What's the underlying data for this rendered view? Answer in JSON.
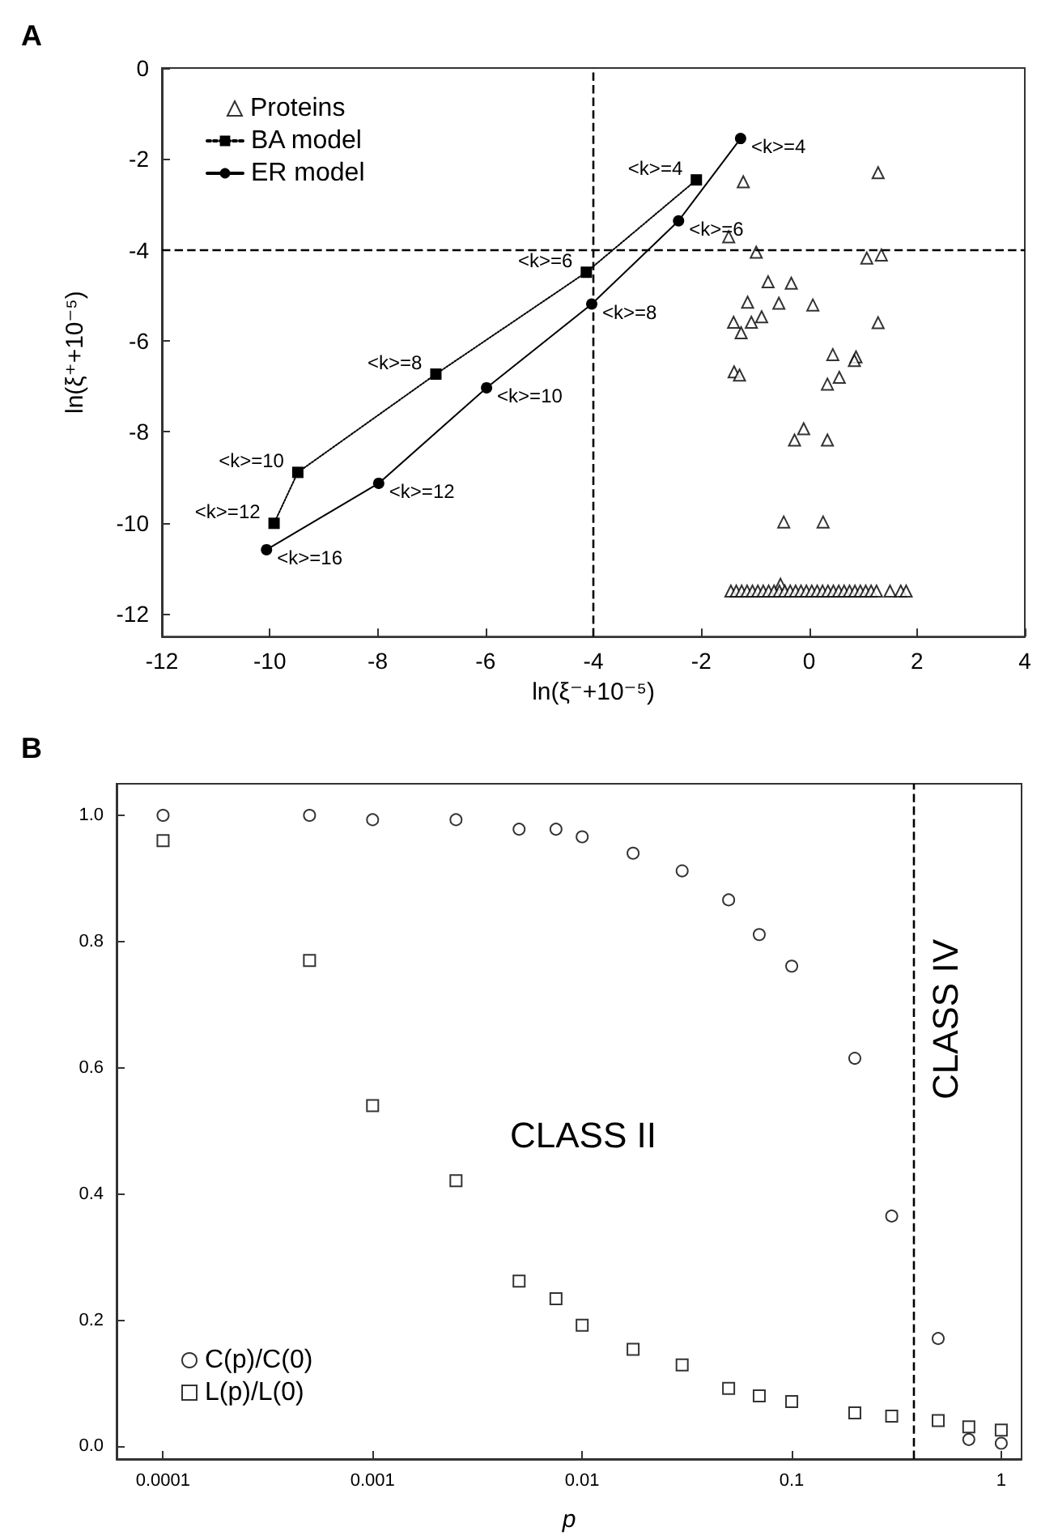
{
  "chart_data": [
    {
      "type": "scatter",
      "title": "A",
      "xlabel": "ln(ξ⁻+10⁻⁵)",
      "ylabel": "ln(ξ⁺+10⁻⁵)",
      "xlim": [
        -12,
        4
      ],
      "ylim": [
        -12.5,
        0
      ],
      "xticks": [
        -12,
        -10,
        -8,
        -6,
        -4,
        -2,
        0,
        2,
        4
      ],
      "yticks": [
        -12,
        -10,
        -8,
        -6,
        -4,
        -2,
        0
      ],
      "legend": "top left",
      "grid": false,
      "ref_lines": [
        {
          "axis": "x",
          "value": -4,
          "line_style": "dashed",
          "color": "#000000"
        },
        {
          "axis": "y",
          "value": -4,
          "line_style": "dashed",
          "color": "#000000"
        }
      ],
      "series": [
        {
          "name": "Proteins",
          "type": "scatter",
          "marker": "triangle",
          "color": "#000000",
          "x": [
            -1.22,
            1.28,
            -1.49,
            -0.98,
            1.07,
            1.34,
            -0.76,
            -0.33,
            -1.14,
            -0.56,
            0.07,
            -1.4,
            -1.07,
            -0.88,
            -1.26,
            1.28,
            0.44,
            0.87,
            0.84,
            0.56,
            0.34,
            -1.39,
            -1.29,
            -0.1,
            -0.27,
            0.34,
            -0.47,
            0.26,
            -0.53,
            -1.45,
            -1.35,
            -1.25,
            -1.15,
            -1.05,
            -0.95,
            -0.85,
            -0.75,
            -0.65,
            -0.55,
            -0.45,
            -0.35,
            -0.25,
            -0.15,
            -0.05,
            0.05,
            0.15,
            0.25,
            0.35,
            0.45,
            0.55,
            0.65,
            0.75,
            0.85,
            0.95,
            1.05,
            1.15,
            1.25,
            1.5,
            1.7,
            1.8
          ],
          "values": [
            -2.5,
            -2.3,
            -3.71,
            -4.05,
            -4.18,
            -4.11,
            -4.7,
            -4.73,
            -5.15,
            -5.17,
            -5.21,
            -5.59,
            -5.59,
            -5.47,
            -5.82,
            -5.6,
            -6.3,
            -6.35,
            -6.43,
            -6.8,
            -6.95,
            -6.68,
            -6.75,
            -7.93,
            -8.18,
            -8.18,
            -9.98,
            -9.98,
            -11.35,
            -11.5,
            -11.5,
            -11.5,
            -11.5,
            -11.5,
            -11.5,
            -11.5,
            -11.5,
            -11.5,
            -11.5,
            -11.5,
            -11.5,
            -11.5,
            -11.5,
            -11.5,
            -11.5,
            -11.5,
            -11.5,
            -11.5,
            -11.5,
            -11.5,
            -11.5,
            -11.5,
            -11.5,
            -11.5,
            -11.5,
            -11.5,
            -11.5,
            -11.5,
            -11.5,
            -11.5
          ]
        },
        {
          "name": "BA model",
          "type": "line",
          "marker": "square",
          "line_style": "dotted",
          "color": "#000000",
          "x": [
            -2.09,
            -4.13,
            -6.92,
            -9.48,
            -9.92
          ],
          "values": [
            -2.46,
            -4.49,
            -6.73,
            -8.89,
            -10.01
          ],
          "value_labels": [
            "<k>=4",
            "<k>=6",
            "<k>=8",
            "<k>=10",
            "<k>=12"
          ]
        },
        {
          "name": "ER model",
          "type": "line",
          "marker": "circle",
          "line_style": "solid",
          "color": "#000000",
          "x": [
            -1.27,
            -2.42,
            -4.03,
            -5.98,
            -7.98,
            -10.06
          ],
          "values": [
            -1.55,
            -3.36,
            -5.19,
            -7.03,
            -9.13,
            -10.59
          ],
          "value_labels": [
            "<k>=4",
            "<k>=6",
            "<k>=8",
            "<k>=10",
            "<k>=12",
            "<k>=16"
          ]
        }
      ]
    },
    {
      "type": "scatter",
      "title": "B",
      "xlabel": "p",
      "log": "x",
      "xlim": [
        6e-05,
        1.25
      ],
      "ylim": [
        -0.02,
        1.05
      ],
      "xticks": [
        0.0001,
        0.001,
        0.01,
        0.1,
        1
      ],
      "yticks": [
        {
          "value": 0,
          "label": "0.0"
        },
        0.2,
        0.4,
        0.6,
        0.8,
        {
          "value": 1,
          "label": "1.0"
        }
      ],
      "legend": "bottom left",
      "grid": false,
      "ref_lines": [
        {
          "axis": "x",
          "value": 0.38,
          "line_style": "dashed",
          "color": "#000000"
        }
      ],
      "annotations": [
        "CLASS II",
        "CLASS IV"
      ],
      "x": [
        0.0001,
        0.0005,
        0.001,
        0.0025,
        0.005,
        0.0075,
        0.01,
        0.0175,
        0.03,
        0.05,
        0.07,
        0.1,
        0.2,
        0.3,
        0.5,
        0.7,
        1
      ],
      "series": [
        {
          "name": "C(p)/C(0)",
          "marker": "circle",
          "color": "#000000",
          "values": [
            1.0,
            1.0,
            0.993,
            0.993,
            0.978,
            0.978,
            0.966,
            0.94,
            0.912,
            0.866,
            0.811,
            0.761,
            0.615,
            0.365,
            0.171,
            0.011,
            0.005
          ]
        },
        {
          "name": "L(p)/L(0)",
          "marker": "square",
          "color": "#000000",
          "values": [
            0.96,
            0.77,
            0.54,
            0.421,
            0.262,
            0.234,
            0.192,
            0.154,
            0.129,
            0.092,
            0.08,
            0.071,
            0.053,
            0.048,
            0.041,
            0.031,
            0.026
          ]
        }
      ]
    }
  ]
}
